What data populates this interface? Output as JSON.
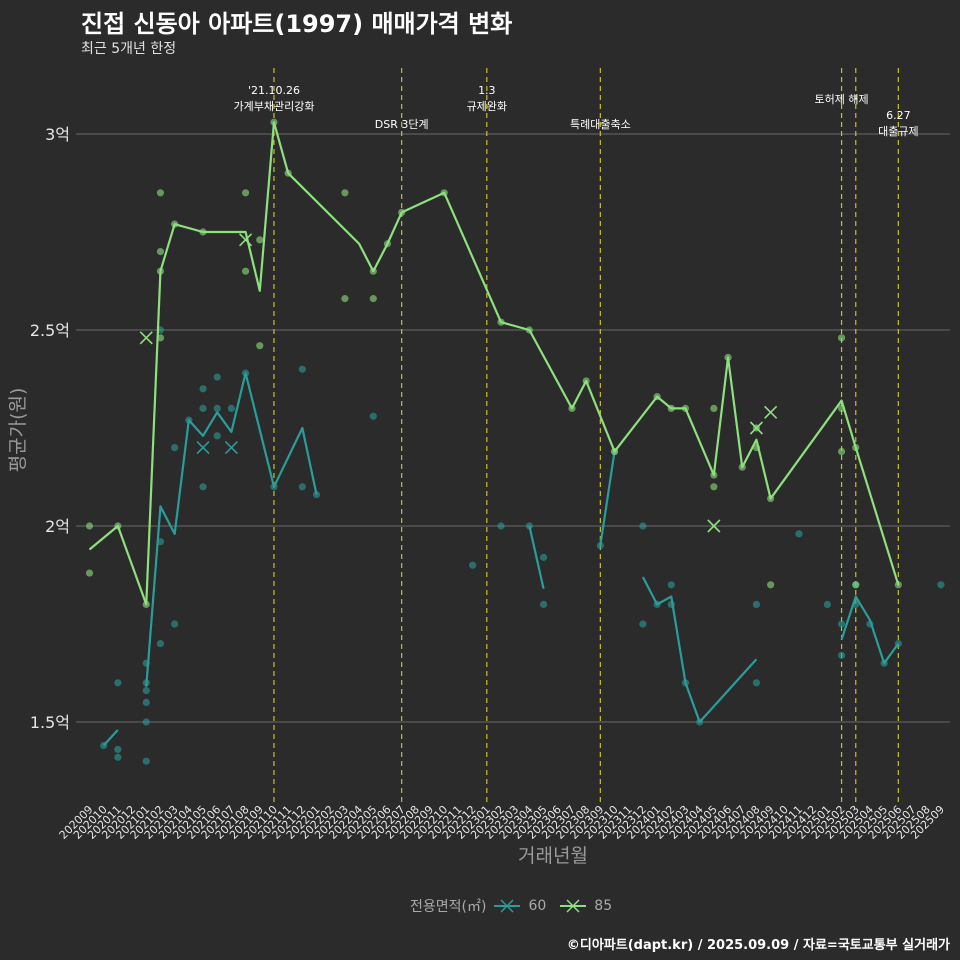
{
  "title": "진접 신동아 아파트(1997) 매매가격 변화",
  "subtitle": "최근 5개년 한정",
  "caption": "©디아파트(dapt.kr) / 2025.09.09 / 자료=국토교통부 실거래가",
  "colors": {
    "background": "#2b2b2b",
    "grid": "#6a6a6a",
    "series60": "#2a9d9a",
    "series85": "#8ee07e",
    "event": "#c8c020"
  },
  "legend": {
    "title": "전용면적(㎡)",
    "items": [
      "60",
      "85"
    ]
  },
  "chart_data": {
    "type": "line",
    "title": "진접 신동아 아파트(1997) 매매가격 변화",
    "xlabel": "거래년월",
    "ylabel": "평균가(원)",
    "categories": [
      "202009",
      "202010",
      "202011",
      "202012",
      "202101",
      "202102",
      "202103",
      "202104",
      "202105",
      "202106",
      "202107",
      "202108",
      "202109",
      "202110",
      "202111",
      "202112",
      "202201",
      "202202",
      "202203",
      "202204",
      "202205",
      "202206",
      "202207",
      "202208",
      "202209",
      "202210",
      "202211",
      "202212",
      "202301",
      "202302",
      "202303",
      "202304",
      "202305",
      "202306",
      "202307",
      "202308",
      "202309",
      "202310",
      "202311",
      "202312",
      "202401",
      "202402",
      "202403",
      "202404",
      "202405",
      "202406",
      "202407",
      "202408",
      "202409",
      "202410",
      "202411",
      "202412",
      "202501",
      "202502",
      "202503",
      "202504",
      "202505",
      "202506",
      "202507",
      "202508",
      "202509"
    ],
    "ylim": [
      1.32,
      3.22
    ],
    "yticks": [
      1.5,
      2.0,
      2.5,
      3.0
    ],
    "ytick_labels": [
      "1.5억",
      "2억",
      "2.5억",
      "3억"
    ],
    "series": [
      {
        "name": "60",
        "color": "#2a9d9a",
        "lines": [
          [
            [
              1,
              1.44
            ],
            [
              2,
              1.48
            ]
          ],
          [
            [
              4,
              1.59
            ],
            [
              5,
              2.05
            ],
            [
              6,
              1.98
            ],
            [
              7,
              2.27
            ],
            [
              8,
              2.23
            ],
            [
              9,
              2.29
            ],
            [
              10,
              2.24
            ],
            [
              11,
              2.39
            ],
            [
              13,
              2.1
            ],
            [
              15,
              2.25
            ],
            [
              16,
              2.08
            ]
          ],
          [
            [
              31,
              2.0
            ],
            [
              32,
              1.84
            ]
          ],
          [
            [
              36,
              1.95
            ],
            [
              37,
              2.19
            ]
          ],
          [
            [
              39,
              1.87
            ],
            [
              40,
              1.8
            ],
            [
              41,
              1.82
            ],
            [
              42,
              1.6
            ],
            [
              43,
              1.5
            ],
            [
              47,
              1.66
            ]
          ],
          [
            [
              53,
              1.71
            ],
            [
              54,
              1.82
            ],
            [
              55,
              1.76
            ],
            [
              56,
              1.65
            ],
            [
              57,
              1.7
            ]
          ]
        ],
        "points": [
          [
            1,
            1.44
          ],
          [
            2,
            1.43
          ],
          [
            2,
            1.41
          ],
          [
            2,
            1.6
          ],
          [
            4,
            1.65
          ],
          [
            4,
            1.6
          ],
          [
            4,
            1.58
          ],
          [
            4,
            1.55
          ],
          [
            4,
            1.5
          ],
          [
            4,
            1.4
          ],
          [
            5,
            2.5
          ],
          [
            5,
            1.96
          ],
          [
            5,
            1.7
          ],
          [
            6,
            2.2
          ],
          [
            6,
            1.75
          ],
          [
            7,
            2.27
          ],
          [
            8,
            2.35
          ],
          [
            8,
            2.3
          ],
          [
            8,
            2.1
          ],
          [
            9,
            2.38
          ],
          [
            9,
            2.3
          ],
          [
            9,
            2.23
          ],
          [
            10,
            2.3
          ],
          [
            11,
            2.39
          ],
          [
            13,
            2.1
          ],
          [
            15,
            2.4
          ],
          [
            15,
            2.1
          ],
          [
            16,
            2.08
          ],
          [
            20,
            2.28
          ],
          [
            27,
            1.9
          ],
          [
            29,
            2.0
          ],
          [
            31,
            2.0
          ],
          [
            32,
            1.92
          ],
          [
            32,
            1.8
          ],
          [
            36,
            1.95
          ],
          [
            37,
            2.19
          ],
          [
            39,
            2.0
          ],
          [
            39,
            1.75
          ],
          [
            40,
            1.8
          ],
          [
            41,
            1.85
          ],
          [
            41,
            1.8
          ],
          [
            42,
            1.6
          ],
          [
            43,
            1.5
          ],
          [
            47,
            1.8
          ],
          [
            47,
            1.6
          ],
          [
            50,
            1.98
          ],
          [
            52,
            1.8
          ],
          [
            53,
            1.75
          ],
          [
            53,
            1.67
          ],
          [
            54,
            1.85
          ],
          [
            54,
            1.8
          ],
          [
            55,
            1.75
          ],
          [
            56,
            1.65
          ],
          [
            57,
            1.7
          ],
          [
            60,
            1.85
          ]
        ],
        "x_marks": [
          [
            8,
            2.2
          ],
          [
            10,
            2.2
          ]
        ]
      },
      {
        "name": "85",
        "color": "#8ee07e",
        "lines": [
          [
            [
              0,
              1.94
            ],
            [
              2,
              2.0
            ],
            [
              4,
              1.8
            ],
            [
              5,
              2.65
            ],
            [
              6,
              2.77
            ],
            [
              8,
              2.75
            ],
            [
              11,
              2.75
            ],
            [
              12,
              2.6
            ],
            [
              13,
              3.03
            ],
            [
              14,
              2.9
            ],
            [
              19,
              2.72
            ],
            [
              20,
              2.65
            ],
            [
              21,
              2.72
            ],
            [
              22,
              2.8
            ],
            [
              25,
              2.85
            ],
            [
              29,
              2.52
            ],
            [
              31,
              2.5
            ],
            [
              34,
              2.3
            ],
            [
              35,
              2.37
            ],
            [
              37,
              2.19
            ],
            [
              40,
              2.33
            ],
            [
              41,
              2.3
            ],
            [
              42,
              2.3
            ],
            [
              44,
              2.13
            ],
            [
              45,
              2.43
            ],
            [
              46,
              2.15
            ],
            [
              47,
              2.22
            ],
            [
              48,
              2.07
            ],
            [
              53,
              2.32
            ],
            [
              54,
              2.2
            ],
            [
              57,
              1.85
            ]
          ]
        ],
        "points": [
          [
            0,
            2.0
          ],
          [
            0,
            1.88
          ],
          [
            2,
            2.0
          ],
          [
            4,
            1.8
          ],
          [
            5,
            2.85
          ],
          [
            5,
            2.7
          ],
          [
            5,
            2.65
          ],
          [
            5,
            2.48
          ],
          [
            6,
            2.77
          ],
          [
            8,
            2.75
          ],
          [
            11,
            2.85
          ],
          [
            11,
            2.65
          ],
          [
            12,
            2.73
          ],
          [
            12,
            2.46
          ],
          [
            13,
            3.03
          ],
          [
            14,
            2.9
          ],
          [
            18,
            2.85
          ],
          [
            18,
            2.58
          ],
          [
            20,
            2.65
          ],
          [
            20,
            2.58
          ],
          [
            21,
            2.72
          ],
          [
            22,
            2.8
          ],
          [
            25,
            2.85
          ],
          [
            29,
            2.52
          ],
          [
            31,
            2.5
          ],
          [
            34,
            2.3
          ],
          [
            35,
            2.37
          ],
          [
            37,
            2.19
          ],
          [
            40,
            2.33
          ],
          [
            41,
            2.3
          ],
          [
            42,
            2.3
          ],
          [
            44,
            2.3
          ],
          [
            44,
            2.13
          ],
          [
            44,
            2.1
          ],
          [
            45,
            2.43
          ],
          [
            46,
            2.15
          ],
          [
            47,
            2.25
          ],
          [
            47,
            2.2
          ],
          [
            48,
            2.07
          ],
          [
            48,
            1.85
          ],
          [
            53,
            2.48
          ],
          [
            53,
            2.3
          ],
          [
            53,
            2.19
          ],
          [
            54,
            2.2
          ],
          [
            54,
            1.85
          ],
          [
            57,
            1.85
          ]
        ],
        "x_marks": [
          [
            4,
            2.48
          ],
          [
            11,
            2.73
          ],
          [
            44,
            2.0
          ],
          [
            47,
            2.25
          ],
          [
            48,
            2.29
          ]
        ]
      }
    ],
    "annotations": [
      {
        "x": 13,
        "lines": [
          "'21.10.26",
          "가계부채관리강화"
        ],
        "level": "high"
      },
      {
        "x": 22,
        "lines": [
          "DSR 3단계"
        ],
        "level": "low"
      },
      {
        "x": 28,
        "lines": [
          "1.3",
          "규제완화"
        ],
        "level": "high"
      },
      {
        "x": 36,
        "lines": [
          "특례대출축소"
        ],
        "level": "low"
      },
      {
        "x": 53,
        "lines": [
          "토허제 해제"
        ],
        "level": "top"
      },
      {
        "x": 54,
        "lines": [],
        "level": "none"
      },
      {
        "x": 57,
        "lines": [
          "6.27",
          "대출규제"
        ],
        "level": "mid"
      }
    ]
  }
}
